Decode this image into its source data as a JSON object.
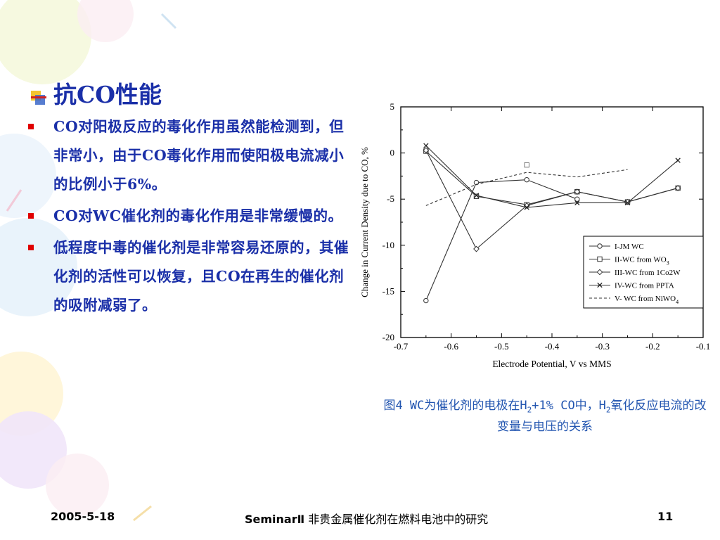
{
  "slide": {
    "title": "抗CO性能",
    "bullets": [
      "CO对阳极反应的毒化作用虽然能检测到，但非常小，由于CO毒化作用而使阳极电流减小的比例小于6%。",
      "CO对WC催化剂的毒化作用是非常缓慢的。",
      "低程度中毒的催化剂是非常容易还原的，其催化剂的活性可以恢复，且CO在再生的催化剂的吸附减弱了。"
    ],
    "caption": {
      "part1": "图4 WC为催化剂的电极在H",
      "sub1": "2",
      "part2": "+1% CO中，H",
      "sub2": "2",
      "part3": "氧化反应电流的改变量与电压的关系"
    }
  },
  "footer": {
    "date": "2005-5-18",
    "seminar": "SeminarⅡ",
    "title": " 非贵金属催化剂在燃料电池中的研究",
    "page": "11"
  },
  "chart_data": {
    "type": "line",
    "xlabel": "Electrode Potential, V vs MMS",
    "ylabel": "Change in Current Density due to CO, %",
    "xlim": [
      -0.7,
      -0.1
    ],
    "ylim": [
      -20,
      5
    ],
    "xticks": [
      "-0.7",
      "-0.6",
      "-0.5",
      "-0.4",
      "-0.3",
      "-0.2",
      "-0.1"
    ],
    "yticks": [
      "5",
      "0",
      "-5",
      "-10",
      "-15",
      "-20"
    ],
    "legend_position": "bottom-right",
    "series": [
      {
        "name": "I-JM WC",
        "marker": "circle",
        "dash": false,
        "points": [
          [
            -0.65,
            -16
          ],
          [
            -0.55,
            -3.2
          ],
          [
            -0.45,
            -2.9
          ],
          [
            -0.35,
            -5.0
          ]
        ]
      },
      {
        "name": "II-WC from WO",
        "name_sub": "3",
        "marker": "square",
        "dash": false,
        "points": [
          [
            -0.65,
            0.2
          ],
          [
            -0.55,
            -4.7
          ],
          [
            -0.45,
            -5.6
          ],
          [
            -0.35,
            -4.2
          ],
          [
            -0.25,
            -5.3
          ],
          [
            -0.15,
            -3.8
          ]
        ]
      },
      {
        "name": "III-WC from 1Co2W",
        "marker": "diamond",
        "dash": false,
        "points": [
          [
            -0.65,
            0.3
          ],
          [
            -0.55,
            -10.4
          ],
          [
            -0.45,
            -5.7
          ],
          [
            -0.35,
            -4.2
          ],
          [
            -0.25,
            -5.3
          ],
          [
            -0.15,
            -3.8
          ]
        ]
      },
      {
        "name": "IV-WC from PPTA",
        "marker": "x",
        "dash": false,
        "points": [
          [
            -0.65,
            0.8
          ],
          [
            -0.55,
            -4.6
          ],
          [
            -0.45,
            -5.9
          ],
          [
            -0.35,
            -5.4
          ],
          [
            -0.25,
            -5.4
          ],
          [
            -0.15,
            -0.8
          ]
        ]
      },
      {
        "name": "V- WC from NiWO",
        "name_sub": "4",
        "marker": "square-open",
        "dash": true,
        "points": [
          [
            -0.65,
            -5.7
          ],
          [
            -0.55,
            -3.4
          ],
          [
            -0.45,
            -2.1
          ],
          [
            -0.35,
            -2.6
          ],
          [
            -0.25,
            -1.8
          ]
        ]
      }
    ]
  }
}
